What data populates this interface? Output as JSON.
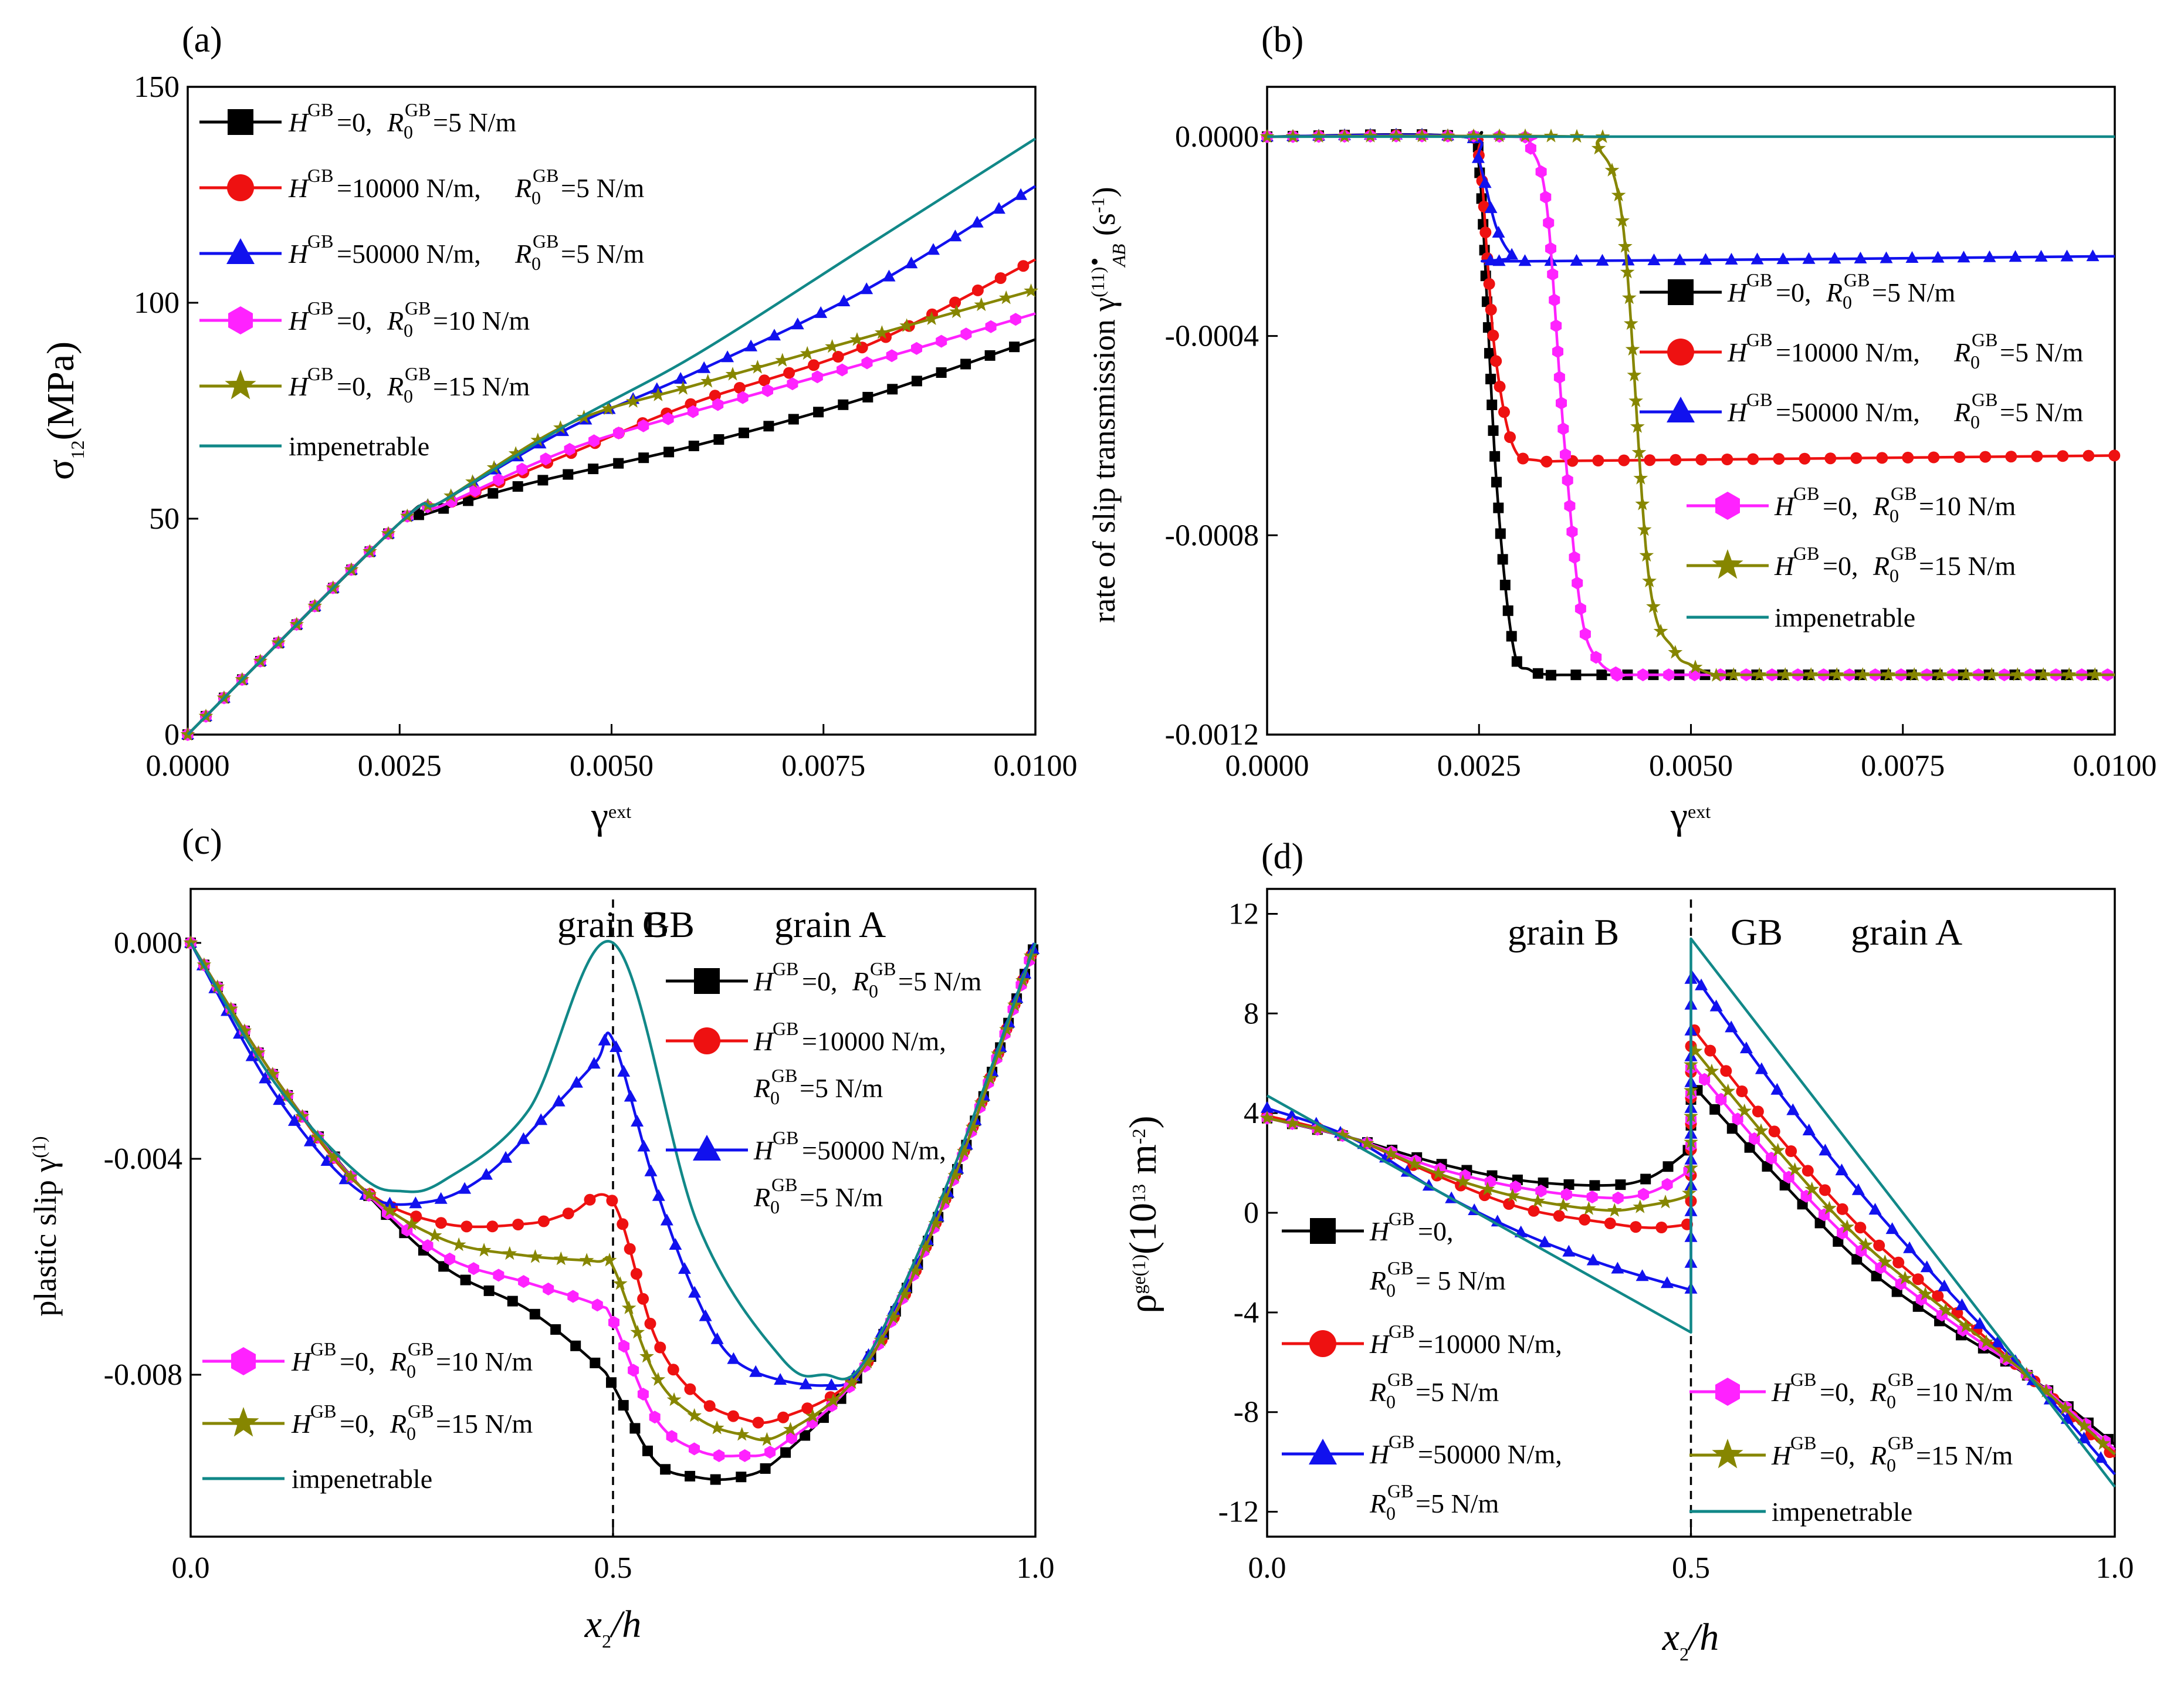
{
  "colors": {
    "black": "#000000",
    "red": "#ee1111",
    "blue": "#1111ee",
    "magenta": "#ff22ff",
    "olive": "#868600",
    "teal": "#118888"
  },
  "legend_text": {
    "H": "H",
    "GB": "GB",
    "R": "R",
    "zero": "0",
    "l1": {
      "h": "=0, ",
      "r": "=5 N/m"
    },
    "l2": {
      "h": "=10000 N/m, ",
      "r": "=5 N/m"
    },
    "l3": {
      "h": "=50000 N/m, ",
      "r": "=5 N/m"
    },
    "l4": {
      "h": "=0, ",
      "r": "=10 N/m"
    },
    "l5": {
      "h": "=0, ",
      "r": "=15 N/m"
    },
    "l6": "impenetrable",
    "c2h": "=10000 N/m,",
    "c3h": "=50000 N/m,",
    "cr": "=5 N/m",
    "d1h": "=0,",
    "d1r": "= 5 N/m"
  },
  "chart_data": [
    {
      "panel": "(a)",
      "type": "line",
      "xlabel": "γ",
      "xlabel_sup": "ext",
      "ylabel": "σ",
      "ylabel_sub": "12",
      "ylabel_unit": "(MPa)",
      "xlim": [
        0,
        0.01
      ],
      "ylim": [
        0,
        150
      ],
      "xticks": [
        "0.0000",
        "0.0025",
        "0.0050",
        "0.0075",
        "0.0100"
      ],
      "yticks": [
        "0",
        "50",
        "100",
        "150"
      ],
      "legend_position": "top-left",
      "series": [
        {
          "color": "black",
          "marker": "square",
          "x": [
            0,
            0.0025,
            0.0028,
            0.004,
            0.006,
            0.008,
            0.01
          ],
          "y": [
            0,
            49,
            51,
            58,
            67,
            78,
            91.5
          ]
        },
        {
          "color": "red",
          "marker": "circle",
          "x": [
            0,
            0.0025,
            0.003,
            0.0045,
            0.006,
            0.008,
            0.01
          ],
          "y": [
            0,
            49,
            53,
            65,
            77,
            90,
            110
          ]
        },
        {
          "color": "blue",
          "marker": "triangle",
          "x": [
            0,
            0.0025,
            0.003,
            0.0045,
            0.006,
            0.008,
            0.01
          ],
          "y": [
            0,
            49,
            54,
            71,
            84,
            103,
            127
          ]
        },
        {
          "color": "magenta",
          "marker": "hexagon",
          "x": [
            0,
            0.0025,
            0.003,
            0.0045,
            0.006,
            0.008,
            0.01
          ],
          "y": [
            0,
            49,
            53,
            66,
            75,
            86,
            97.5
          ]
        },
        {
          "color": "olive",
          "marker": "star",
          "x": [
            0,
            0.0025,
            0.003,
            0.0045,
            0.006,
            0.008,
            0.01
          ],
          "y": [
            0,
            49,
            54,
            72,
            81,
            92,
            103
          ]
        },
        {
          "color": "teal",
          "marker": "none",
          "x": [
            0,
            0.0025,
            0.003,
            0.0045,
            0.006,
            0.008,
            0.01
          ],
          "y": [
            0,
            49,
            54,
            72,
            88,
            113,
            138
          ]
        }
      ]
    },
    {
      "panel": "(b)",
      "type": "line",
      "xlabel": "γ",
      "xlabel_sup": "ext",
      "ylabel": "rate of slip transmission γ",
      "ylabel_sup": "(11)",
      "ylabel_sub": "AB",
      "ylabel_unit": " (s",
      "ylabel_unit_sup": "-1",
      "ylabel_close": ")",
      "xlim": [
        0,
        0.01
      ],
      "ylim": [
        -0.0012,
        0.0001
      ],
      "xticks": [
        "0.0000",
        "0.0025",
        "0.0050",
        "0.0075",
        "0.0100"
      ],
      "yticks": [
        "0.0000",
        "-0.0004",
        "-0.0008",
        "-0.0012"
      ],
      "legend_position": "right",
      "series": [
        {
          "color": "black",
          "marker": "square",
          "x": [
            0,
            0.0023,
            0.0025,
            0.0027,
            0.0029,
            0.0031,
            0.0034,
            0.004,
            0.01
          ],
          "y": [
            0,
            0,
            -6e-05,
            -0.00068,
            -0.00102,
            -0.00107,
            -0.00108,
            -0.00108,
            -0.00108
          ]
        },
        {
          "color": "red",
          "marker": "circle",
          "x": [
            0,
            0.0023,
            0.0025,
            0.0026,
            0.0027,
            0.0029,
            0.0032,
            0.004,
            0.01
          ],
          "y": [
            0,
            0,
            -4e-05,
            -0.00025,
            -0.00045,
            -0.00062,
            -0.00065,
            -0.00065,
            -0.00064
          ]
        },
        {
          "color": "blue",
          "marker": "triangle",
          "x": [
            0,
            0.0023,
            0.0025,
            0.0027,
            0.0029,
            0.0031,
            0.01
          ],
          "y": [
            0,
            0,
            -5e-05,
            -0.00018,
            -0.00024,
            -0.00025,
            -0.00024
          ]
        },
        {
          "color": "magenta",
          "marker": "hexagon",
          "x": [
            0,
            0.0029,
            0.0031,
            0.0033,
            0.0035,
            0.0037,
            0.0039,
            0.0042,
            0.0046,
            0.01
          ],
          "y": [
            0,
            0,
            -2e-05,
            -0.00014,
            -0.0006,
            -0.00095,
            -0.00105,
            -0.00108,
            -0.00108,
            -0.00108
          ]
        },
        {
          "color": "olive",
          "marker": "star",
          "x": [
            0,
            0.0037,
            0.0039,
            0.0042,
            0.0045,
            0.0048,
            0.005,
            0.0053,
            0.0057,
            0.01
          ],
          "y": [
            0,
            0,
            -2e-05,
            -0.00018,
            -0.00088,
            -0.00103,
            -0.00106,
            -0.00108,
            -0.00108,
            -0.00108
          ]
        },
        {
          "color": "teal",
          "marker": "none",
          "x": [
            0,
            0.01
          ],
          "y": [
            0,
            0
          ]
        }
      ]
    },
    {
      "panel": "(c)",
      "type": "line",
      "xlabel": "x",
      "xlabel_sub": "2",
      "xlabel_tail": "/h",
      "ylabel": "plastic slip γ",
      "ylabel_sup": "(1)",
      "xlim": [
        0,
        1
      ],
      "ylim": [
        -0.011,
        0.001
      ],
      "xticks": [
        "0.0",
        "0.5",
        "1.0"
      ],
      "yticks": [
        "0.000",
        "-0.004",
        "-0.008"
      ],
      "annotations": {
        "grain_b": "grain B",
        "gb": "GB",
        "grain_a": "grain A"
      },
      "gb_position": 0.5,
      "legend_position": "top-right, bottom-left",
      "series": [
        {
          "color": "black",
          "marker": "square",
          "x": [
            0,
            0.1,
            0.2,
            0.3,
            0.4,
            0.48,
            0.5,
            0.55,
            0.6,
            0.65,
            0.7,
            0.8,
            0.9,
            1.0
          ],
          "y": [
            0,
            -0.0025,
            -0.0045,
            -0.006,
            -0.0068,
            -0.0078,
            -0.0082,
            -0.0096,
            -0.0099,
            -0.0099,
            -0.0095,
            -0.0078,
            -0.0045,
            0
          ]
        },
        {
          "color": "red",
          "marker": "circle",
          "x": [
            0,
            0.1,
            0.2,
            0.3,
            0.4,
            0.45,
            0.5,
            0.55,
            0.6,
            0.65,
            0.7,
            0.8,
            0.9,
            1.0
          ],
          "y": [
            0,
            -0.0025,
            -0.0045,
            -0.0052,
            -0.0052,
            -0.005,
            -0.0048,
            -0.0073,
            -0.0084,
            -0.0088,
            -0.0088,
            -0.0078,
            -0.0045,
            0
          ]
        },
        {
          "color": "blue",
          "marker": "triangle",
          "x": [
            0,
            0.1,
            0.2,
            0.28,
            0.35,
            0.42,
            0.48,
            0.5,
            0.55,
            0.6,
            0.65,
            0.75,
            0.8,
            0.9,
            1.0
          ],
          "y": [
            0,
            -0.0028,
            -0.0046,
            -0.0048,
            -0.0043,
            -0.0032,
            -0.0022,
            -0.0018,
            -0.0045,
            -0.0066,
            -0.0078,
            -0.0082,
            -0.0077,
            -0.0045,
            0
          ]
        },
        {
          "color": "magenta",
          "marker": "hexagon",
          "x": [
            0,
            0.1,
            0.2,
            0.3,
            0.4,
            0.48,
            0.5,
            0.55,
            0.6,
            0.65,
            0.7,
            0.8,
            0.9,
            1.0
          ],
          "y": [
            0,
            -0.0025,
            -0.0045,
            -0.0058,
            -0.0063,
            -0.0067,
            -0.007,
            -0.0088,
            -0.0094,
            -0.0095,
            -0.0093,
            -0.0078,
            -0.0045,
            0
          ]
        },
        {
          "color": "olive",
          "marker": "star",
          "x": [
            0,
            0.1,
            0.2,
            0.3,
            0.4,
            0.48,
            0.5,
            0.55,
            0.6,
            0.65,
            0.7,
            0.8,
            0.9,
            1.0
          ],
          "y": [
            0,
            -0.0025,
            -0.0045,
            -0.0055,
            -0.0058,
            -0.0059,
            -0.006,
            -0.008,
            -0.0088,
            -0.0091,
            -0.0091,
            -0.0078,
            -0.0045,
            0
          ]
        },
        {
          "color": "teal",
          "marker": "none",
          "x": [
            0,
            0.1,
            0.2,
            0.25,
            0.3,
            0.4,
            0.5,
            0.6,
            0.7,
            0.75,
            0.8,
            0.9,
            1.0
          ],
          "y": [
            0,
            -0.0026,
            -0.0043,
            -0.0046,
            -0.0044,
            -0.0031,
            0,
            -0.0052,
            -0.0077,
            -0.008,
            -0.0077,
            -0.0043,
            0
          ]
        }
      ]
    },
    {
      "panel": "(d)",
      "type": "line",
      "xlabel": "x",
      "xlabel_sub": "2",
      "xlabel_tail": "/h",
      "ylabel": "ρ",
      "ylabel_sup": "ge(1)",
      "ylabel_unit": "(10",
      "ylabel_unit_sup": "13",
      "ylabel_unit2": " m",
      "ylabel_unit2_sup": "-2",
      "ylabel_close": ")",
      "xlim": [
        0,
        1
      ],
      "ylim": [
        -13,
        13
      ],
      "xticks": [
        "0.0",
        "0.5",
        "1.0"
      ],
      "yticks": [
        "12",
        "8",
        "4",
        "0",
        "-4",
        "-8",
        "-12"
      ],
      "annotations": {
        "grain_b": "grain B",
        "gb": "GB",
        "grain_a": "grain A"
      },
      "gb_position": 0.5,
      "legend_position": "bottom-left, bottom-right",
      "series": [
        {
          "color": "black",
          "marker": "square",
          "x": [
            0,
            0.1,
            0.2,
            0.3,
            0.4,
            0.45,
            0.49,
            0.5,
            0.5,
            0.6,
            0.7,
            0.8,
            0.9,
            1.0
          ],
          "y": [
            3.8,
            3.0,
            2.0,
            1.3,
            1.1,
            1.4,
            2.3,
            2.7,
            5.2,
            1.5,
            -2.0,
            -4.5,
            -6.6,
            -9.3
          ]
        },
        {
          "color": "red",
          "marker": "circle",
          "x": [
            0,
            0.1,
            0.2,
            0.3,
            0.4,
            0.45,
            0.49,
            0.5,
            0.5,
            0.6,
            0.7,
            0.8,
            0.9,
            1.0
          ],
          "y": [
            3.9,
            3.0,
            1.5,
            0.2,
            -0.4,
            -0.6,
            -0.5,
            -0.4,
            7.5,
            3.2,
            -0.6,
            -3.6,
            -6.6,
            -9.8
          ]
        },
        {
          "color": "blue",
          "marker": "triangle",
          "x": [
            0,
            0.1,
            0.2,
            0.3,
            0.4,
            0.5,
            0.5,
            0.6,
            0.7,
            0.8,
            0.9,
            1.0
          ],
          "y": [
            4.2,
            3.0,
            0.9,
            -0.8,
            -2.1,
            -3.1,
            9.7,
            5.0,
            0.8,
            -3.0,
            -6.6,
            -10.5
          ]
        },
        {
          "color": "magenta",
          "marker": "hexagon",
          "x": [
            0,
            0.1,
            0.2,
            0.3,
            0.4,
            0.45,
            0.49,
            0.5,
            0.5,
            0.6,
            0.7,
            0.8,
            0.9,
            1.0
          ],
          "y": [
            3.8,
            3.0,
            1.8,
            1.0,
            0.6,
            0.8,
            1.5,
            1.8,
            6.0,
            2.0,
            -1.5,
            -4.2,
            -6.6,
            -9.5
          ]
        },
        {
          "color": "olive",
          "marker": "star",
          "x": [
            0,
            0.1,
            0.2,
            0.3,
            0.4,
            0.45,
            0.49,
            0.5,
            0.5,
            0.6,
            0.7,
            0.8,
            0.9,
            1.0
          ],
          "y": [
            3.8,
            3.0,
            1.6,
            0.6,
            0.1,
            0.3,
            0.6,
            0.9,
            6.7,
            2.6,
            -1.1,
            -3.9,
            -6.6,
            -9.7
          ]
        },
        {
          "color": "teal",
          "marker": "none",
          "x": [
            0,
            0.5,
            0.5,
            1.0
          ],
          "y": [
            4.7,
            -4.8,
            11.0,
            -11.0
          ]
        }
      ]
    }
  ]
}
